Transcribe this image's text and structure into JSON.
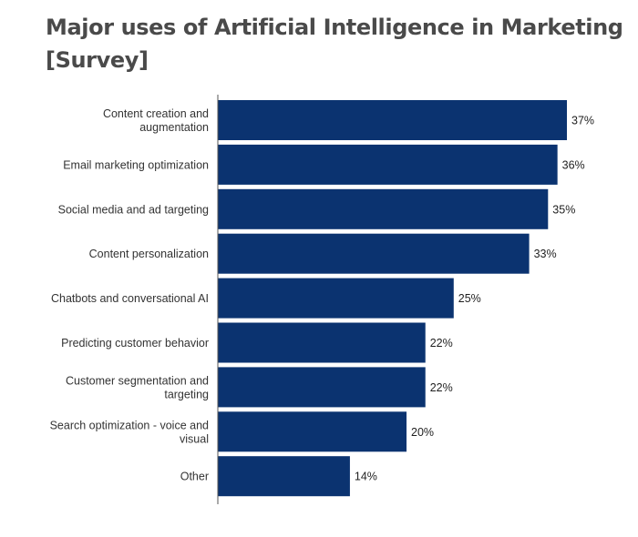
{
  "title": "Major uses of Artificial Intelligence in Marketing [Survey]",
  "colors": {
    "bar": "#0b3370",
    "axis": "#555555",
    "title": "#4a4a4a"
  },
  "chart_data": {
    "type": "bar",
    "orientation": "horizontal",
    "title": "Major uses of Artificial Intelligence in Marketing [Survey]",
    "xlabel": "",
    "ylabel": "",
    "unit": "%",
    "grid": false,
    "legend": "none",
    "xlim": [
      0,
      37
    ],
    "categories": [
      [
        "Content creation and",
        "augmentation"
      ],
      [
        "Email marketing optimization"
      ],
      [
        "Social media and ad targeting"
      ],
      [
        "Content personalization"
      ],
      [
        "Chatbots and conversational AI"
      ],
      [
        "Predicting customer behavior"
      ],
      [
        "Customer segmentation and",
        "targeting"
      ],
      [
        "Search optimization - voice and",
        "visual"
      ],
      [
        "Other"
      ]
    ],
    "values": [
      37,
      36,
      35,
      33,
      25,
      22,
      22,
      20,
      14
    ],
    "value_labels": [
      "37%",
      "36%",
      "35%",
      "33%",
      "25%",
      "22%",
      "22%",
      "20%",
      "14%"
    ]
  }
}
